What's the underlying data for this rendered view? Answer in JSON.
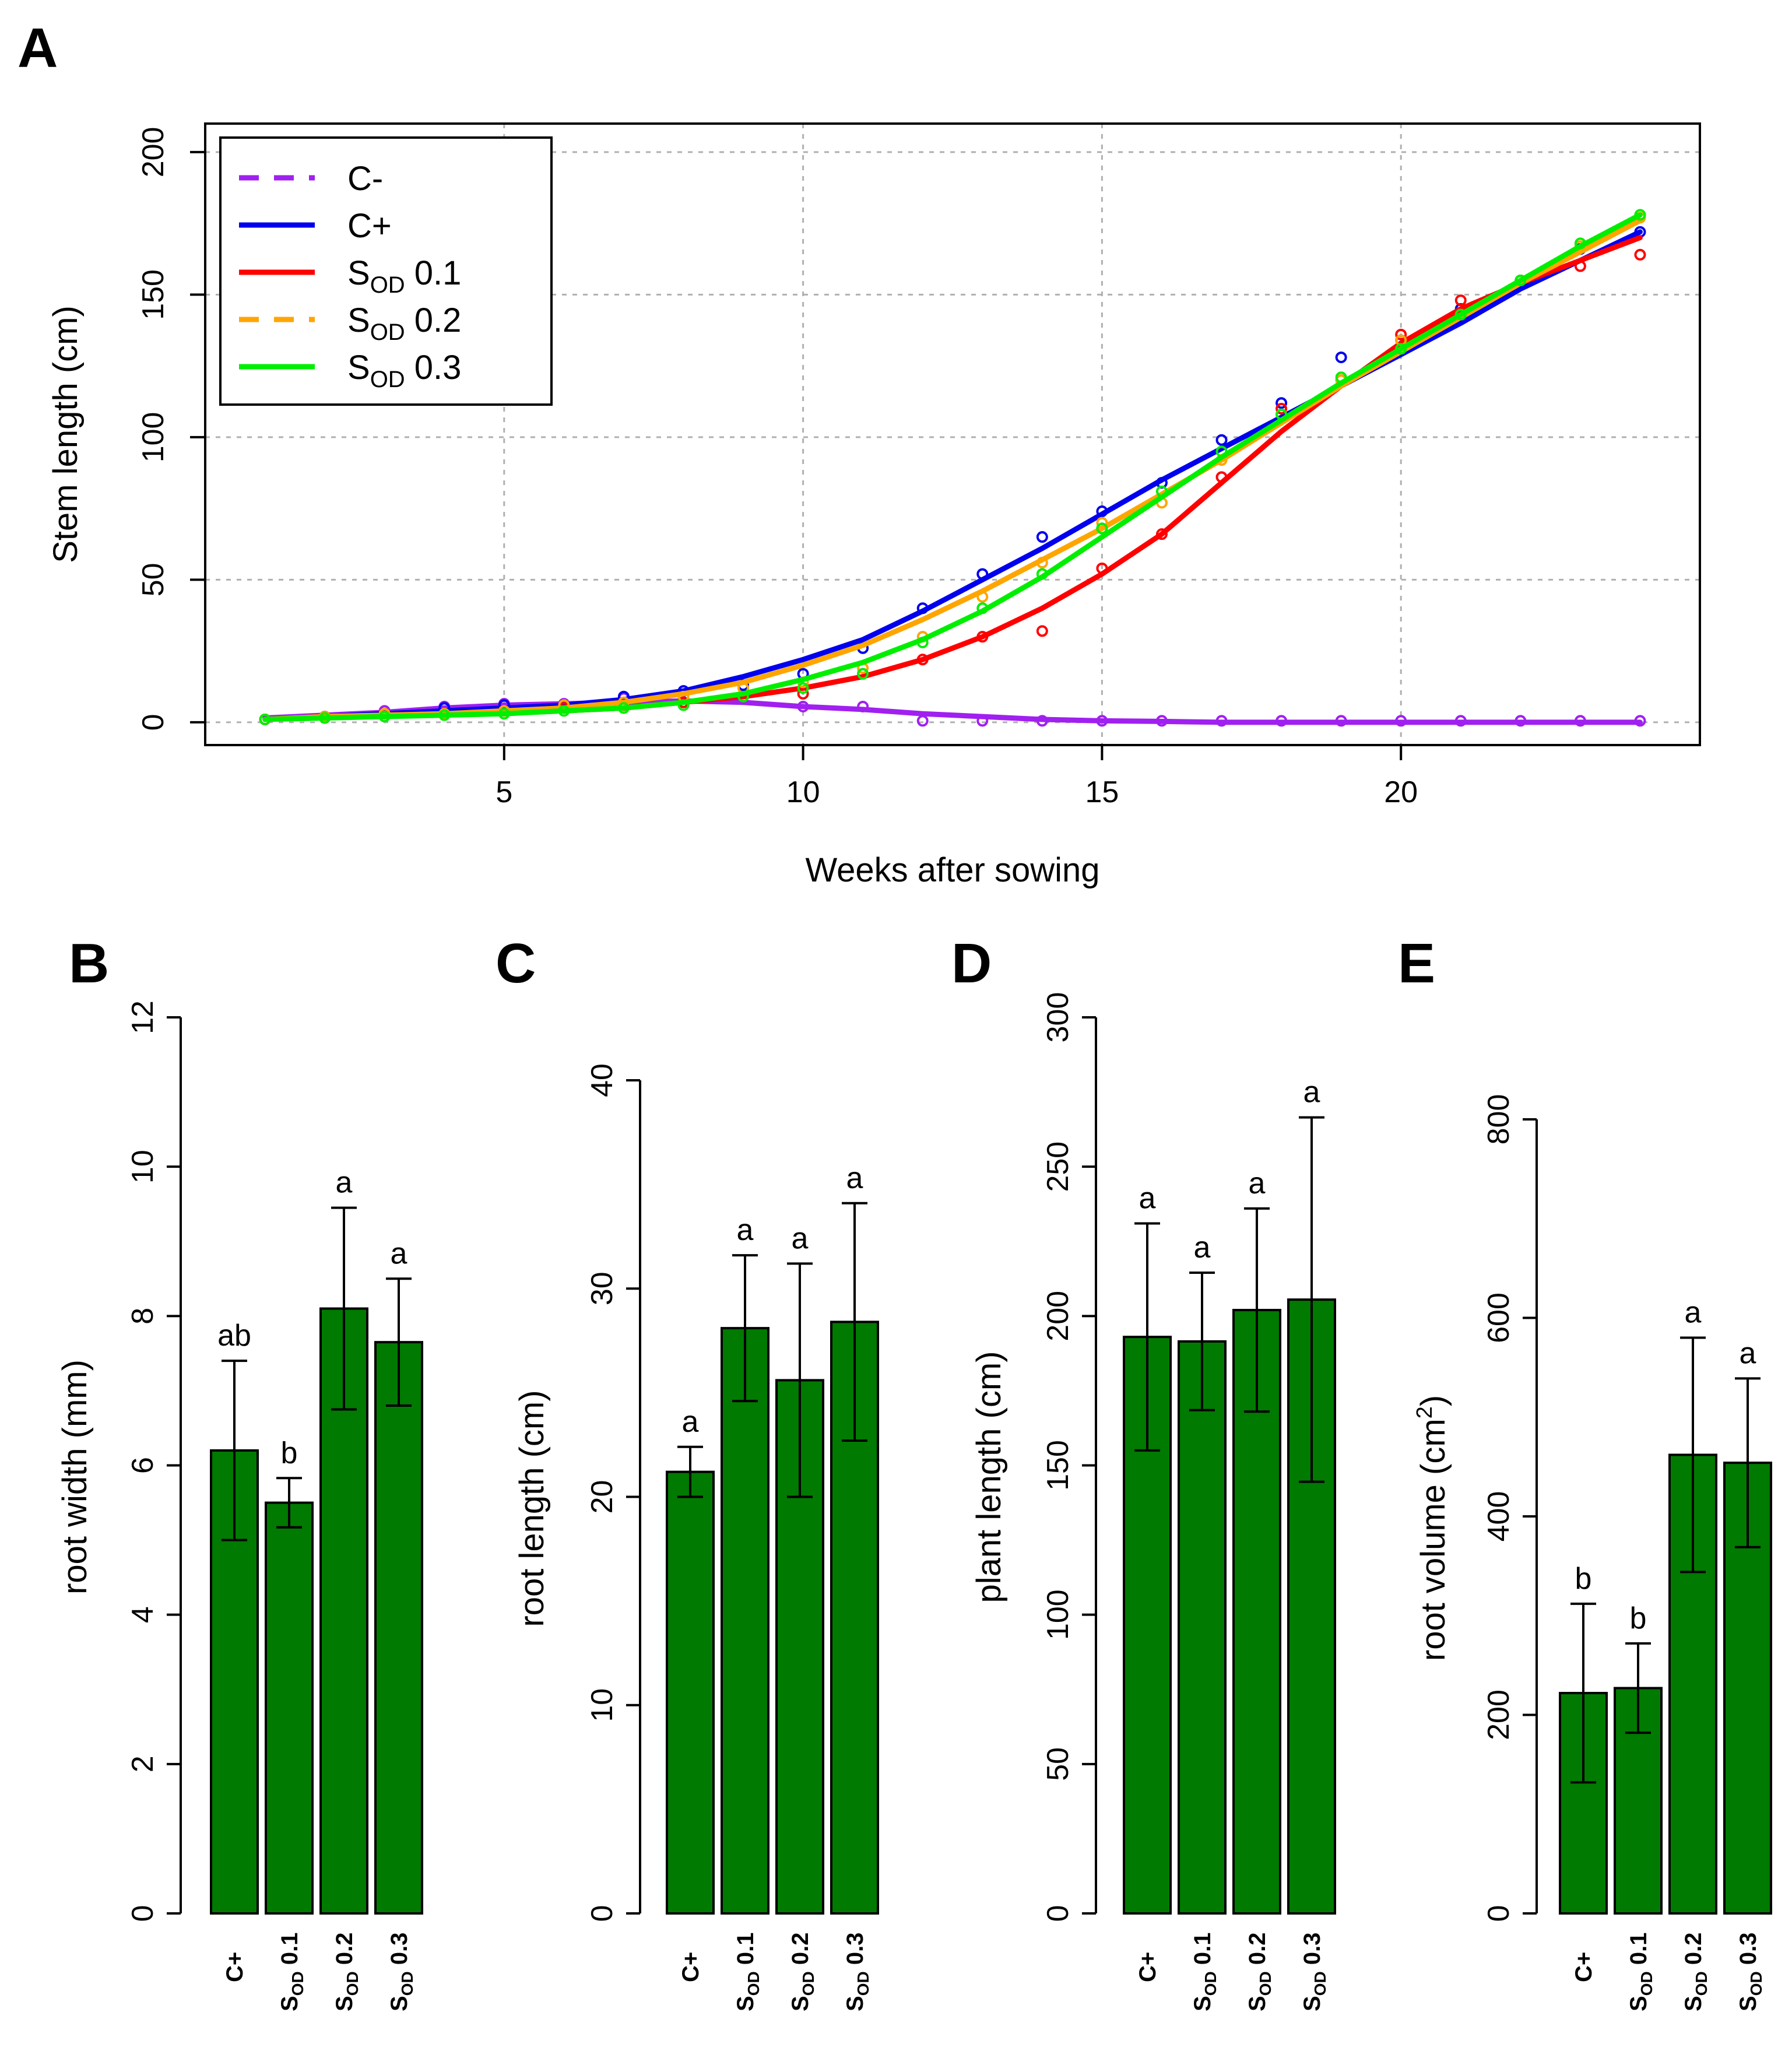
{
  "panels": [
    "A",
    "B",
    "C",
    "D",
    "E"
  ],
  "chart_data": [
    {
      "panel": "A",
      "type": "line",
      "xlabel": "Weeks after sowing",
      "ylabel": "Stem length (cm)",
      "xlim": [
        0,
        25
      ],
      "ylim": [
        -8,
        210
      ],
      "xticks": [
        5,
        10,
        15,
        20
      ],
      "yticks": [
        0,
        50,
        100,
        150,
        200
      ],
      "grid": true,
      "legend_position": "top-left",
      "x": [
        1,
        2,
        3,
        4,
        5,
        6,
        7,
        8,
        9,
        10,
        11,
        12,
        13,
        14,
        15,
        16,
        17,
        18,
        19,
        20,
        21,
        22,
        23,
        24
      ],
      "series": [
        {
          "name": "C-",
          "legend_main": "C-",
          "legend_sub": "",
          "legend_suffix": "",
          "color": "#a020f0",
          "dash": true,
          "fit": [
            1.5,
            2.5,
            3.5,
            5,
            6,
            6.5,
            7,
            7.5,
            7,
            5.5,
            4.5,
            3,
            2,
            1,
            0.5,
            0.3,
            0,
            0,
            0,
            0,
            0,
            0,
            0,
            0
          ],
          "points": [
            1,
            2,
            4,
            5.5,
            6.5,
            6.5,
            8.5,
            7,
            9,
            5.5,
            5.5,
            0.5,
            0.5,
            0.5,
            0.5,
            0.5,
            0.5,
            0.5,
            0.5,
            0.5,
            0.5,
            0.5,
            0.5,
            0.5
          ]
        },
        {
          "name": "C+",
          "legend_main": "C+",
          "legend_sub": "",
          "legend_suffix": "",
          "color": "#0000ee",
          "dash": false,
          "fit": [
            1,
            2,
            3,
            4,
            5,
            6,
            8,
            11,
            16,
            22,
            29,
            39,
            50,
            61,
            73,
            85,
            96,
            107,
            118,
            129,
            140,
            152,
            162,
            172
          ],
          "points": [
            1,
            2,
            3,
            5,
            6,
            6,
            9,
            11,
            13,
            17,
            26,
            40,
            52,
            65,
            74,
            84,
            99,
            112,
            128,
            134,
            145,
            155,
            166,
            172
          ]
        },
        {
          "name": "SOD 0.1",
          "legend_main": "S",
          "legend_sub": "OD",
          "legend_suffix": " 0.1",
          "color": "#ff0000",
          "dash": false,
          "fit": [
            1,
            2,
            2.5,
            3,
            3.5,
            4,
            5,
            7,
            9,
            12,
            16,
            22,
            30,
            40,
            52,
            66,
            84,
            102,
            118,
            133,
            145,
            154,
            162,
            170
          ],
          "points": [
            1,
            2,
            3,
            3,
            4,
            5,
            6,
            7,
            9,
            10,
            17,
            22,
            30,
            32,
            54,
            66,
            86,
            110,
            120,
            136,
            148,
            155,
            160,
            164
          ]
        },
        {
          "name": "SOD 0.2",
          "legend_main": "S",
          "legend_sub": "OD",
          "legend_suffix": " 0.2",
          "color": "#ffa500",
          "dash": true,
          "fit": [
            1,
            2,
            2.5,
            3,
            4,
            5,
            7,
            10,
            14,
            20,
            27,
            36,
            46,
            57,
            68,
            80,
            92,
            105,
            118,
            130,
            142,
            154,
            165,
            176
          ],
          "points": [
            1,
            2,
            3,
            3,
            4,
            6,
            7,
            9,
            12,
            14,
            19,
            30,
            44,
            56,
            70,
            77,
            92,
            108,
            120,
            134,
            143,
            155,
            167,
            177
          ]
        },
        {
          "name": "SOD 0.3",
          "legend_main": "S",
          "legend_sub": "OD",
          "legend_suffix": " 0.3",
          "color": "#00ee00",
          "dash": false,
          "fit": [
            1,
            1.5,
            2,
            2.5,
            3,
            4,
            5,
            7,
            10,
            15,
            21,
            29,
            39,
            51,
            65,
            79,
            93,
            106,
            119,
            131,
            143,
            155,
            167,
            178
          ],
          "points": [
            1,
            1.5,
            2,
            2.5,
            3,
            4,
            5,
            6,
            9,
            12,
            17,
            28,
            40,
            52,
            68,
            81,
            95,
            108,
            121,
            131,
            143,
            155,
            168,
            178
          ]
        }
      ]
    },
    {
      "panel": "B",
      "type": "bar",
      "ylabel": "root width (mm)",
      "ylim": [
        0,
        12
      ],
      "yticks": [
        0,
        2,
        4,
        6,
        8,
        10,
        12
      ],
      "categories": [
        "C+",
        "SOD 0.1",
        "SOD 0.2",
        "SOD 0.3"
      ],
      "values": [
        6.2,
        5.5,
        8.1,
        7.65
      ],
      "errors": [
        1.2,
        0.33,
        1.35,
        0.85
      ],
      "letters": [
        "ab",
        "b",
        "a",
        "a"
      ]
    },
    {
      "panel": "C",
      "type": "bar",
      "ylabel": "root  length (cm)",
      "ylim": [
        0,
        40
      ],
      "yticks": [
        0,
        10,
        20,
        30,
        40
      ],
      "categories": [
        "C+",
        "SOD 0.1",
        "SOD 0.2",
        "SOD 0.3"
      ],
      "values": [
        21.2,
        28.1,
        25.6,
        28.4
      ],
      "errors": [
        1.2,
        3.5,
        5.6,
        5.7
      ],
      "letters": [
        "a",
        "a",
        "a",
        "a"
      ]
    },
    {
      "panel": "D",
      "type": "bar",
      "ylabel": "plant length (cm)",
      "ylim": [
        0,
        300
      ],
      "yticks": [
        0,
        50,
        100,
        150,
        200,
        250,
        300
      ],
      "categories": [
        "C+",
        "SOD 0.1",
        "SOD 0.2",
        "SOD 0.3"
      ],
      "values": [
        193,
        191.5,
        202,
        205.5
      ],
      "errors": [
        38,
        23,
        34,
        61
      ],
      "letters": [
        "a",
        "a",
        "a",
        "a"
      ]
    },
    {
      "panel": "E",
      "type": "bar",
      "ylabel": "root volume (cm",
      "ylabel_sup": "2",
      "ylabel_end": ")",
      "ylim": [
        0,
        800
      ],
      "yticks": [
        0,
        200,
        400,
        600,
        800
      ],
      "categories": [
        "C+",
        "SOD 0.1",
        "SOD 0.2",
        "SOD 0.3"
      ],
      "values": [
        222,
        227,
        462,
        454
      ],
      "errors": [
        90,
        45,
        118,
        85
      ],
      "letters": [
        "b",
        "b",
        "a",
        "a"
      ]
    }
  ]
}
